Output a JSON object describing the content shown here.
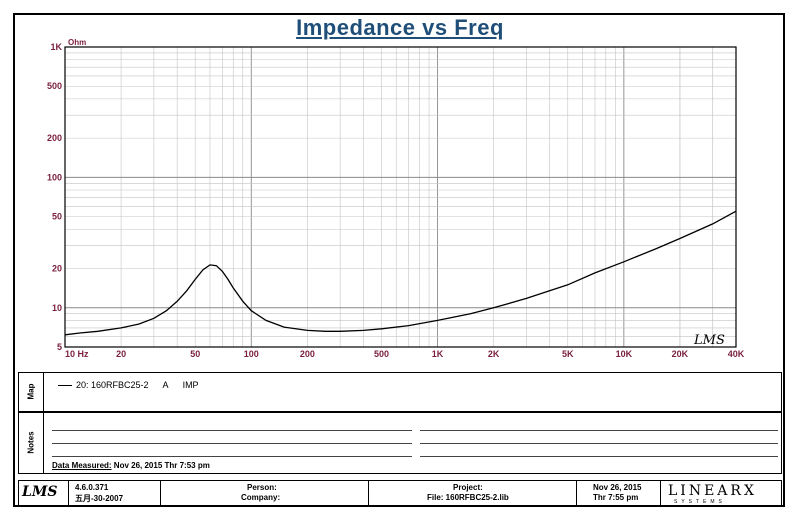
{
  "chart_data": {
    "type": "line",
    "title": "Impedance vs Freq",
    "ylabel": "Ohm",
    "xscale": "log",
    "yscale": "log",
    "xlim": [
      10,
      40000
    ],
    "ylim": [
      5,
      1000
    ],
    "grid": true,
    "y_ticks": [
      "1K",
      "500",
      "200",
      "100",
      "50",
      "20",
      "10",
      "5"
    ],
    "x_ticks": [
      "10 Hz",
      "20",
      "50",
      "100",
      "200",
      "500",
      "1K",
      "2K",
      "5K",
      "10K",
      "20K",
      "40K"
    ],
    "series": [
      {
        "name": "20: 160RFBC25-2   A   IMP",
        "x": [
          10,
          12,
          15,
          20,
          25,
          30,
          35,
          40,
          45,
          50,
          55,
          60,
          65,
          70,
          75,
          80,
          90,
          100,
          120,
          150,
          200,
          250,
          300,
          400,
          500,
          700,
          1000,
          1500,
          2000,
          3000,
          5000,
          7000,
          10000,
          15000,
          20000,
          30000,
          40000
        ],
        "y": [
          6.2,
          6.4,
          6.6,
          7.0,
          7.5,
          8.3,
          9.5,
          11.2,
          13.5,
          16.5,
          19.5,
          21.3,
          21.0,
          19.0,
          16.5,
          14.2,
          11.2,
          9.5,
          8.0,
          7.1,
          6.7,
          6.6,
          6.6,
          6.7,
          6.9,
          7.3,
          8.0,
          9.0,
          10.0,
          11.8,
          15.0,
          18.5,
          22.5,
          28.5,
          34.0,
          44.0,
          55.0
        ]
      }
    ]
  },
  "watermark": "LMS",
  "map": {
    "label": "Map",
    "entry": "20: 160RFBC25-2",
    "channel": "A",
    "type": "IMP"
  },
  "notes": {
    "label": "Notes",
    "measured_label": "Data Measured:",
    "measured_value": " Nov 26, 2015  Thr  7:53 pm"
  },
  "footer": {
    "logo": "LMS",
    "version": "4.6.0.371",
    "date_cn": "五月-30-2007",
    "person_label": "Person:",
    "company_label": "Company:",
    "project_label": "Project:",
    "file_label": "File: 160RFBC25-2.lib",
    "date": "Nov 26, 2015",
    "time": "Thr  7:55 pm",
    "brand": "LINEARX",
    "brand_sub": "SYSTEMS"
  }
}
